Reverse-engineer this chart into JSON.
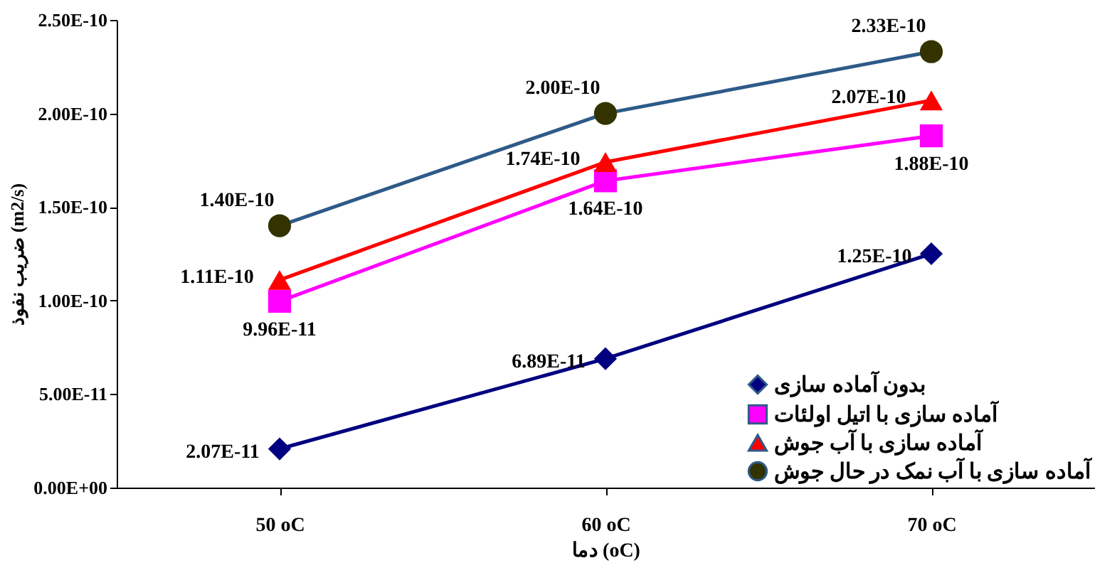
{
  "chart_data": {
    "type": "line",
    "xlabel": "دما (oC)",
    "ylabel": "ضریب نفوذ (m2/s)",
    "categories": [
      "50 oC",
      "60 oC",
      "70 oC"
    ],
    "ylim": [
      0,
      2.5e-10
    ],
    "yticks": [
      {
        "value": 0,
        "label": "0.00E+00"
      },
      {
        "value": 5e-11,
        "label": "5.00E-11"
      },
      {
        "value": 1e-10,
        "label": "1.00E-10"
      },
      {
        "value": 1.5e-10,
        "label": "1.50E-10"
      },
      {
        "value": 2e-10,
        "label": "2.00E-10"
      },
      {
        "value": 2.5e-10,
        "label": "2.50E-10"
      }
    ],
    "grid": false,
    "legend": "bottom right",
    "line_style": "solid",
    "series": [
      {
        "name": "بدون آماده سازی",
        "color": "#000080",
        "marker": "diamond",
        "values": [
          2.07e-11,
          6.89e-11,
          1.25e-10
        ],
        "value_labels": [
          "2.07E-11",
          "6.89E-11",
          "1.25E-10"
        ]
      },
      {
        "name": "آماده سازی با اتیل اولئات",
        "color": "#ff00ff",
        "marker": "square",
        "values": [
          9.96e-11,
          1.64e-10,
          1.88e-10
        ],
        "value_labels": [
          "9.96E-11",
          "1.64E-10",
          "1.88E-10"
        ]
      },
      {
        "name": "آماده سازی با آب جوش",
        "color": "#ff0000",
        "marker": "triangle",
        "values": [
          1.11e-10,
          1.74e-10,
          2.07e-10
        ],
        "value_labels": [
          "1.11E-10",
          "1.74E-10",
          "2.07E-10"
        ]
      },
      {
        "name": "آماده سازی با آب نمک در حال جوش",
        "color": "#2e5a88",
        "marker": "circle",
        "values": [
          1.4e-10,
          2e-10,
          2.33e-10
        ],
        "value_labels": [
          "1.40E-10",
          "2.00E-10",
          "2.33E-10"
        ]
      }
    ]
  }
}
